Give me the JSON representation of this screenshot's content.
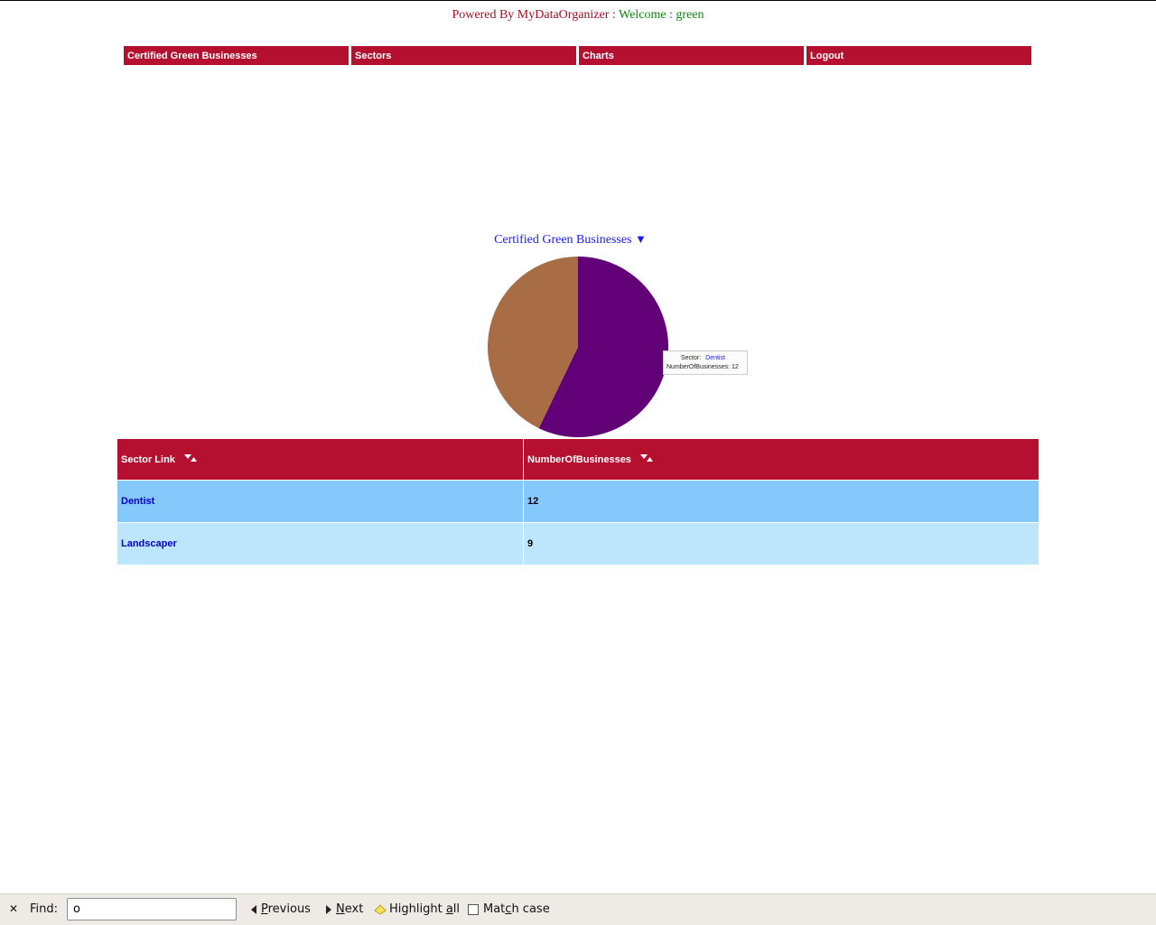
{
  "header": {
    "powered": "Powered By MyDataOrganizer :",
    "welcome": "Welcome : green"
  },
  "nav": {
    "items": [
      {
        "label": "Certified Green Businesses"
      },
      {
        "label": "Sectors"
      },
      {
        "label": "Charts"
      },
      {
        "label": "Logout"
      }
    ]
  },
  "chart": {
    "title": "Certified Green Businesses",
    "dropdown_glyph": "▼",
    "tooltip": {
      "sector_label": "Sector:",
      "sector_value": "Dentist",
      "count_label": "NumberOfBusinesses:",
      "count_value": "12"
    }
  },
  "chart_data": {
    "type": "pie",
    "title": "Certified Green Businesses",
    "categories": [
      "Dentist",
      "Landscaper"
    ],
    "values": [
      12,
      9
    ],
    "colors": [
      "#620078",
      "#a86d44"
    ]
  },
  "table": {
    "headers": [
      "Sector Link",
      "NumberOfBusinesses"
    ],
    "sort_icon": "sort-toggle-icon",
    "rows": [
      {
        "sector": "Dentist",
        "count": "12"
      },
      {
        "sector": "Landscaper",
        "count": "9"
      }
    ]
  },
  "findbar": {
    "label": "Find:",
    "value": "o",
    "previous": "revious",
    "previous_key": "P",
    "next": "ext",
    "next_key": "N",
    "highlight_pre": "Highlight ",
    "highlight_key": "a",
    "highlight_post": "ll",
    "match_pre": "Mat",
    "match_key": "c",
    "match_post": "h case"
  }
}
